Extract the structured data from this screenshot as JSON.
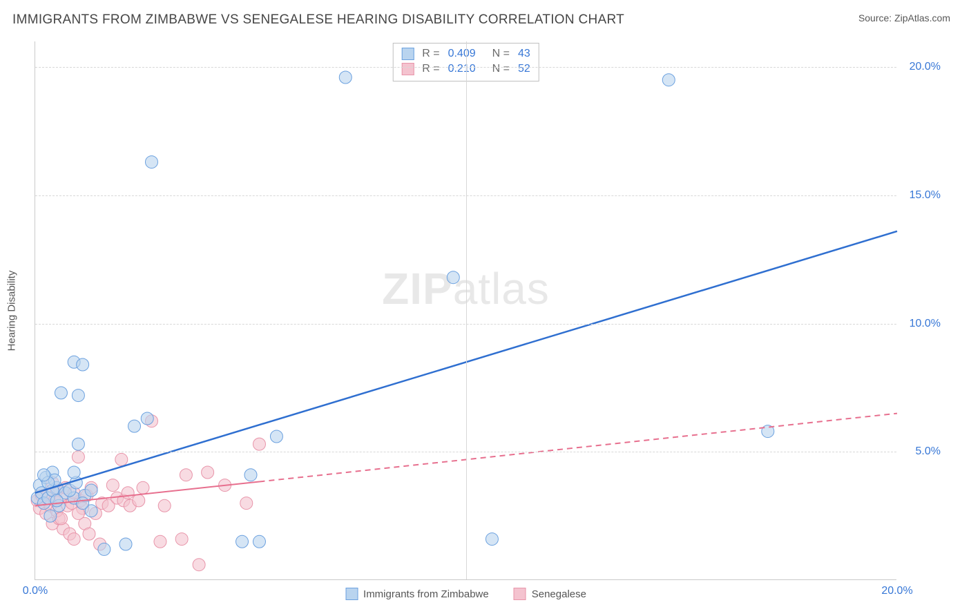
{
  "header": {
    "title": "IMMIGRANTS FROM ZIMBABWE VS SENEGALESE HEARING DISABILITY CORRELATION CHART",
    "source": "Source: ZipAtlas.com"
  },
  "chart": {
    "type": "scatter",
    "watermark": {
      "bold": "ZIP",
      "light": "atlas"
    },
    "ylabel": "Hearing Disability",
    "colors": {
      "series_a_fill": "#b9d4ef",
      "series_a_stroke": "#6aa0df",
      "series_b_fill": "#f4c3cf",
      "series_b_stroke": "#e894a9",
      "reg_a": "#2f6fd0",
      "reg_b": "#e76f8e",
      "grid": "#d7d7d7",
      "tick_text": "#3777d6",
      "title_text": "#464646"
    },
    "marker_radius": 9,
    "reg_line_width_a": 2.5,
    "reg_line_width_b": 2,
    "xlim": [
      0,
      20
    ],
    "ylim": [
      0,
      21
    ],
    "xticks": [
      {
        "v": 0,
        "label": "0.0%"
      },
      {
        "v": 20,
        "label": "20.0%"
      }
    ],
    "xgrid": [
      10
    ],
    "yticks": [
      {
        "v": 5,
        "label": "5.0%"
      },
      {
        "v": 10,
        "label": "10.0%"
      },
      {
        "v": 15,
        "label": "15.0%"
      },
      {
        "v": 20,
        "label": "20.0%"
      }
    ],
    "stats": [
      {
        "swatch_fill": "#b9d4ef",
        "swatch_stroke": "#6aa0df",
        "R": "0.409",
        "N": "43"
      },
      {
        "swatch_fill": "#f4c3cf",
        "swatch_stroke": "#e894a9",
        "R": "0.210",
        "N": "52"
      }
    ],
    "bottom_legend": [
      {
        "swatch_fill": "#b9d4ef",
        "swatch_stroke": "#6aa0df",
        "label": "Immigrants from Zimbabwe"
      },
      {
        "swatch_fill": "#f4c3cf",
        "swatch_stroke": "#e894a9",
        "label": "Senegalese"
      }
    ],
    "series": {
      "a": {
        "name": "Immigrants from Zimbabwe",
        "points": [
          [
            0.05,
            3.2
          ],
          [
            0.1,
            3.7
          ],
          [
            0.15,
            3.4
          ],
          [
            0.2,
            3.0
          ],
          [
            0.25,
            4.0
          ],
          [
            0.3,
            3.2
          ],
          [
            0.35,
            2.5
          ],
          [
            0.4,
            4.2
          ],
          [
            0.5,
            3.6
          ],
          [
            0.55,
            2.9
          ],
          [
            0.6,
            7.3
          ],
          [
            0.9,
            8.5
          ],
          [
            1.1,
            8.4
          ],
          [
            1.0,
            7.2
          ],
          [
            0.7,
            3.4
          ],
          [
            0.9,
            3.2
          ],
          [
            1.0,
            5.3
          ],
          [
            1.15,
            3.3
          ],
          [
            1.3,
            2.7
          ],
          [
            1.6,
            1.2
          ],
          [
            2.1,
            1.4
          ],
          [
            2.3,
            6.0
          ],
          [
            2.6,
            6.3
          ],
          [
            2.7,
            16.3
          ],
          [
            4.8,
            1.5
          ],
          [
            5.2,
            1.5
          ],
          [
            5.0,
            4.1
          ],
          [
            5.6,
            5.6
          ],
          [
            7.2,
            19.6
          ],
          [
            9.7,
            11.8
          ],
          [
            10.6,
            1.6
          ],
          [
            14.7,
            19.5
          ],
          [
            17.0,
            5.8
          ],
          [
            0.4,
            3.5
          ],
          [
            0.45,
            3.9
          ],
          [
            0.5,
            3.1
          ],
          [
            0.8,
            3.5
          ],
          [
            0.95,
            3.8
          ],
          [
            1.1,
            3.0
          ],
          [
            1.3,
            3.5
          ],
          [
            0.3,
            3.8
          ],
          [
            0.2,
            4.1
          ],
          [
            0.9,
            4.2
          ]
        ],
        "regression": {
          "x1": 0,
          "y1": 3.4,
          "x2": 20,
          "y2": 13.6
        }
      },
      "b": {
        "name": "Senegalese",
        "points": [
          [
            0.05,
            3.1
          ],
          [
            0.1,
            2.8
          ],
          [
            0.15,
            3.3
          ],
          [
            0.2,
            3.0
          ],
          [
            0.25,
            2.6
          ],
          [
            0.3,
            3.4
          ],
          [
            0.35,
            2.9
          ],
          [
            0.4,
            2.2
          ],
          [
            0.45,
            3.1
          ],
          [
            0.5,
            3.5
          ],
          [
            0.55,
            2.4
          ],
          [
            0.6,
            3.2
          ],
          [
            0.65,
            2.0
          ],
          [
            0.7,
            3.6
          ],
          [
            0.75,
            2.9
          ],
          [
            0.8,
            1.8
          ],
          [
            0.85,
            3.0
          ],
          [
            0.9,
            1.6
          ],
          [
            1.0,
            4.8
          ],
          [
            1.05,
            3.1
          ],
          [
            1.1,
            2.8
          ],
          [
            1.15,
            2.2
          ],
          [
            1.2,
            3.3
          ],
          [
            1.25,
            1.8
          ],
          [
            1.3,
            3.6
          ],
          [
            1.4,
            2.6
          ],
          [
            1.5,
            1.4
          ],
          [
            1.55,
            3.0
          ],
          [
            1.7,
            2.9
          ],
          [
            1.8,
            3.7
          ],
          [
            1.9,
            3.2
          ],
          [
            2.0,
            4.7
          ],
          [
            2.05,
            3.1
          ],
          [
            2.15,
            3.4
          ],
          [
            2.2,
            2.9
          ],
          [
            2.4,
            3.1
          ],
          [
            2.5,
            3.6
          ],
          [
            2.7,
            6.2
          ],
          [
            2.9,
            1.5
          ],
          [
            3.0,
            2.9
          ],
          [
            3.4,
            1.6
          ],
          [
            3.5,
            4.1
          ],
          [
            3.8,
            0.6
          ],
          [
            4.0,
            4.2
          ],
          [
            4.4,
            3.7
          ],
          [
            4.9,
            3.0
          ],
          [
            5.2,
            5.3
          ],
          [
            0.4,
            3.8
          ],
          [
            0.5,
            2.7
          ],
          [
            0.6,
            2.4
          ],
          [
            0.9,
            3.4
          ],
          [
            1.0,
            2.6
          ]
        ],
        "regression": {
          "x1": 0,
          "y1": 2.9,
          "x2": 20,
          "y2": 6.5
        },
        "regression_solid_until_x": 5.2
      }
    }
  }
}
